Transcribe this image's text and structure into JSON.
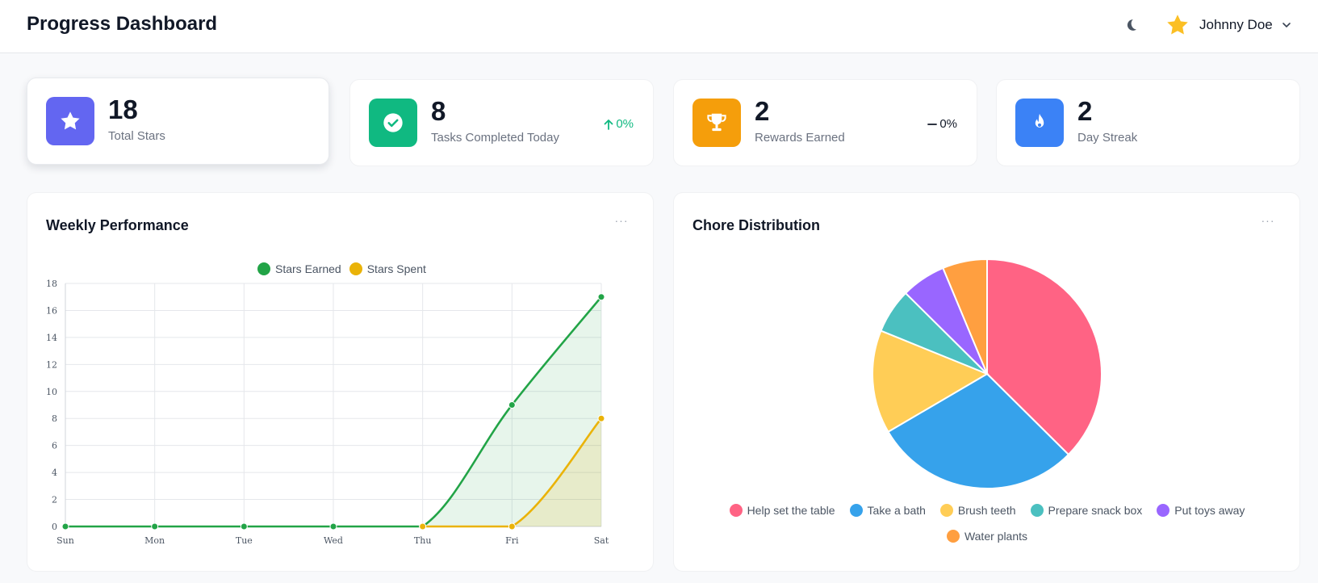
{
  "header": {
    "title": "Progress Dashboard",
    "user_name": "Johnny Doe",
    "icons": [
      "moon-icon",
      "star-icon",
      "chevron-down-icon"
    ]
  },
  "stats": [
    {
      "value": "18",
      "label": "Total Stars",
      "icon": "star-icon",
      "color": "#6366f1",
      "change": ""
    },
    {
      "value": "8",
      "label": "Tasks Completed Today",
      "icon": "check-circle-icon",
      "color": "#10b981",
      "change": "0%",
      "change_color": "#10b981"
    },
    {
      "value": "2",
      "label": "Rewards Earned",
      "icon": "trophy-icon",
      "color": "#f59e0b",
      "change": "0%",
      "change_color": "#111827"
    },
    {
      "value": "2",
      "label": "Day Streak",
      "icon": "fire-icon",
      "color": "#3b82f6",
      "change": ""
    }
  ],
  "weekly": {
    "title": "Weekly Performance",
    "menu": "···"
  },
  "chores": {
    "title": "Chore Distribution",
    "menu": "···"
  },
  "chart_data": [
    {
      "type": "line",
      "title": "Weekly Performance",
      "categories": [
        "Sun",
        "Mon",
        "Tue",
        "Wed",
        "Thu",
        "Fri",
        "Sat"
      ],
      "series": [
        {
          "name": "Stars Earned",
          "values": [
            0,
            0,
            0,
            0,
            0,
            9,
            17
          ],
          "color": "#22a447"
        },
        {
          "name": "Stars Spent",
          "values": [
            null,
            null,
            null,
            null,
            0,
            0,
            8
          ],
          "color": "#eab308"
        }
      ],
      "ylim": [
        0,
        18
      ],
      "yticks": [
        0,
        2,
        4,
        6,
        8,
        10,
        12,
        14,
        16,
        18
      ],
      "grid": true,
      "legend": "top"
    },
    {
      "type": "pie",
      "title": "Chore Distribution",
      "labels": [
        "Help set the table",
        "Take a bath",
        "Brush teeth",
        "Prepare snack box",
        "Put toys away",
        "Water plants"
      ],
      "values": [
        37.5,
        29.2,
        14.6,
        6.3,
        6.3,
        6.3
      ],
      "colors": [
        "#ff6384",
        "#36a2eb",
        "#ffcd56",
        "#4bc0c0",
        "#9966ff",
        "#ff9f40"
      ],
      "legend": "bottom"
    }
  ]
}
